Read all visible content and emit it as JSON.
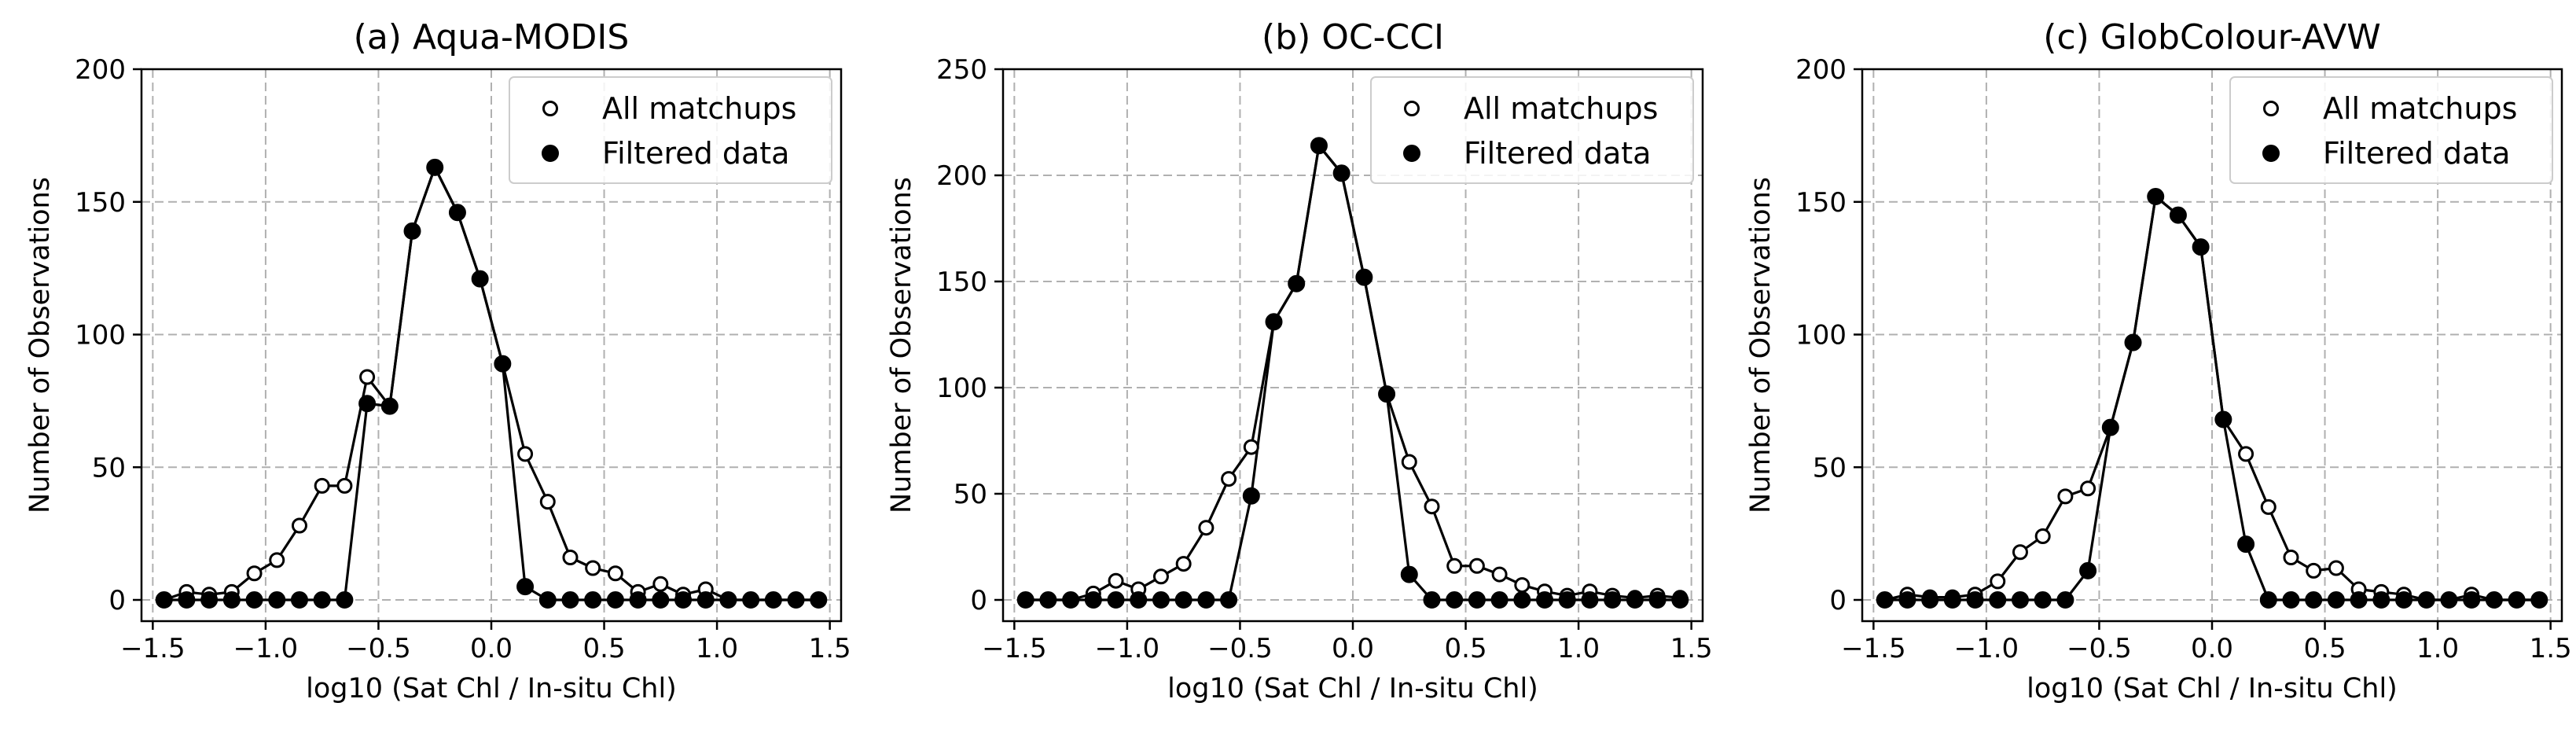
{
  "chart_data": [
    {
      "type": "line",
      "title": "(a) Aqua-MODIS",
      "xlabel": "log10 (Sat Chl / In-situ Chl)",
      "ylabel": "Number of Observations",
      "xlim": [
        -1.55,
        1.55
      ],
      "ylim": [
        -8,
        200
      ],
      "xticks": [
        -1.5,
        -1.0,
        -0.5,
        0.0,
        0.5,
        1.0,
        1.5
      ],
      "xtick_labels": [
        "−1.5",
        "−1.0",
        "−0.5",
        "0.0",
        "0.5",
        "1.0",
        "1.5"
      ],
      "yticks": [
        0,
        50,
        100,
        150,
        200
      ],
      "ytick_labels": [
        "0",
        "50",
        "100",
        "150",
        "200"
      ],
      "grid": true,
      "legend_position": "top-right",
      "series": [
        {
          "name": "All matchups",
          "marker": "open-circle",
          "x": [
            -1.45,
            -1.35,
            -1.25,
            -1.15,
            -1.05,
            -0.95,
            -0.85,
            -0.75,
            -0.65,
            -0.55,
            -0.45,
            -0.35,
            -0.25,
            -0.15,
            -0.05,
            0.05,
            0.15,
            0.25,
            0.35,
            0.45,
            0.55,
            0.65,
            0.75,
            0.85,
            0.95,
            1.05,
            1.15,
            1.25,
            1.35,
            1.45
          ],
          "y": [
            0,
            3,
            2,
            3,
            10,
            15,
            28,
            43,
            43,
            84,
            73,
            139,
            163,
            146,
            121,
            89,
            55,
            37,
            16,
            12,
            10,
            3,
            6,
            2,
            4,
            0,
            0,
            0,
            0,
            0
          ]
        },
        {
          "name": "Filtered data",
          "marker": "filled-circle",
          "x": [
            -1.45,
            -1.35,
            -1.25,
            -1.15,
            -1.05,
            -0.95,
            -0.85,
            -0.75,
            -0.65,
            -0.55,
            -0.45,
            -0.35,
            -0.25,
            -0.15,
            -0.05,
            0.05,
            0.15,
            0.25,
            0.35,
            0.45,
            0.55,
            0.65,
            0.75,
            0.85,
            0.95,
            1.05,
            1.15,
            1.25,
            1.35,
            1.45
          ],
          "y": [
            0,
            0,
            0,
            0,
            0,
            0,
            0,
            0,
            0,
            74,
            73,
            139,
            163,
            146,
            121,
            89,
            5,
            0,
            0,
            0,
            0,
            0,
            0,
            0,
            0,
            0,
            0,
            0,
            0,
            0
          ]
        }
      ]
    },
    {
      "type": "line",
      "title": "(b) OC-CCI",
      "xlabel": "log10 (Sat Chl / In-situ Chl)",
      "ylabel": "Number of Observations",
      "xlim": [
        -1.55,
        1.55
      ],
      "ylim": [
        -10,
        250
      ],
      "xticks": [
        -1.5,
        -1.0,
        -0.5,
        0.0,
        0.5,
        1.0,
        1.5
      ],
      "xtick_labels": [
        "−1.5",
        "−1.0",
        "−0.5",
        "0.0",
        "0.5",
        "1.0",
        "1.5"
      ],
      "yticks": [
        0,
        50,
        100,
        150,
        200,
        250
      ],
      "ytick_labels": [
        "0",
        "50",
        "100",
        "150",
        "200",
        "250"
      ],
      "grid": true,
      "legend_position": "top-right",
      "series": [
        {
          "name": "All matchups",
          "marker": "open-circle",
          "x": [
            -1.45,
            -1.35,
            -1.25,
            -1.15,
            -1.05,
            -0.95,
            -0.85,
            -0.75,
            -0.65,
            -0.55,
            -0.45,
            -0.35,
            -0.25,
            -0.15,
            -0.05,
            0.05,
            0.15,
            0.25,
            0.35,
            0.45,
            0.55,
            0.65,
            0.75,
            0.85,
            0.95,
            1.05,
            1.15,
            1.25,
            1.35,
            1.45
          ],
          "y": [
            0,
            0,
            0,
            3,
            9,
            5,
            11,
            17,
            34,
            57,
            72,
            131,
            149,
            214,
            201,
            152,
            97,
            65,
            44,
            16,
            16,
            12,
            7,
            4,
            2,
            4,
            2,
            1,
            2,
            1
          ]
        },
        {
          "name": "Filtered data",
          "marker": "filled-circle",
          "x": [
            -1.45,
            -1.35,
            -1.25,
            -1.15,
            -1.05,
            -0.95,
            -0.85,
            -0.75,
            -0.65,
            -0.55,
            -0.45,
            -0.35,
            -0.25,
            -0.15,
            -0.05,
            0.05,
            0.15,
            0.25,
            0.35,
            0.45,
            0.55,
            0.65,
            0.75,
            0.85,
            0.95,
            1.05,
            1.15,
            1.25,
            1.35,
            1.45
          ],
          "y": [
            0,
            0,
            0,
            0,
            0,
            0,
            0,
            0,
            0,
            0,
            49,
            131,
            149,
            214,
            201,
            152,
            97,
            12,
            0,
            0,
            0,
            0,
            0,
            0,
            0,
            0,
            0,
            0,
            0,
            0
          ]
        }
      ]
    },
    {
      "type": "line",
      "title": "(c) GlobColour-AVW",
      "xlabel": "log10 (Sat Chl / In-situ Chl)",
      "ylabel": "Number of Observations",
      "xlim": [
        -1.55,
        1.55
      ],
      "ylim": [
        -8,
        200
      ],
      "xticks": [
        -1.5,
        -1.0,
        -0.5,
        0.0,
        0.5,
        1.0,
        1.5
      ],
      "xtick_labels": [
        "−1.5",
        "−1.0",
        "−0.5",
        "0.0",
        "0.5",
        "1.0",
        "1.5"
      ],
      "yticks": [
        0,
        50,
        100,
        150,
        200
      ],
      "ytick_labels": [
        "0",
        "50",
        "100",
        "150",
        "200"
      ],
      "grid": true,
      "legend_position": "top-right",
      "series": [
        {
          "name": "All matchups",
          "marker": "open-circle",
          "x": [
            -1.45,
            -1.35,
            -1.25,
            -1.15,
            -1.05,
            -0.95,
            -0.85,
            -0.75,
            -0.65,
            -0.55,
            -0.45,
            -0.35,
            -0.25,
            -0.15,
            -0.05,
            0.05,
            0.15,
            0.25,
            0.35,
            0.45,
            0.55,
            0.65,
            0.75,
            0.85,
            0.95,
            1.05,
            1.15,
            1.25,
            1.35,
            1.45
          ],
          "y": [
            0,
            2,
            1,
            1,
            2,
            7,
            18,
            24,
            39,
            42,
            65,
            97,
            152,
            145,
            133,
            68,
            55,
            35,
            16,
            11,
            12,
            4,
            3,
            2,
            0,
            0,
            2,
            0,
            0,
            0
          ]
        },
        {
          "name": "Filtered data",
          "marker": "filled-circle",
          "x": [
            -1.45,
            -1.35,
            -1.25,
            -1.15,
            -1.05,
            -0.95,
            -0.85,
            -0.75,
            -0.65,
            -0.55,
            -0.45,
            -0.35,
            -0.25,
            -0.15,
            -0.05,
            0.05,
            0.15,
            0.25,
            0.35,
            0.45,
            0.55,
            0.65,
            0.75,
            0.85,
            0.95,
            1.05,
            1.15,
            1.25,
            1.35,
            1.45
          ],
          "y": [
            0,
            0,
            0,
            0,
            0,
            0,
            0,
            0,
            0,
            11,
            65,
            97,
            152,
            145,
            133,
            68,
            21,
            0,
            0,
            0,
            0,
            0,
            0,
            0,
            0,
            0,
            0,
            0,
            0,
            0
          ]
        }
      ]
    }
  ]
}
